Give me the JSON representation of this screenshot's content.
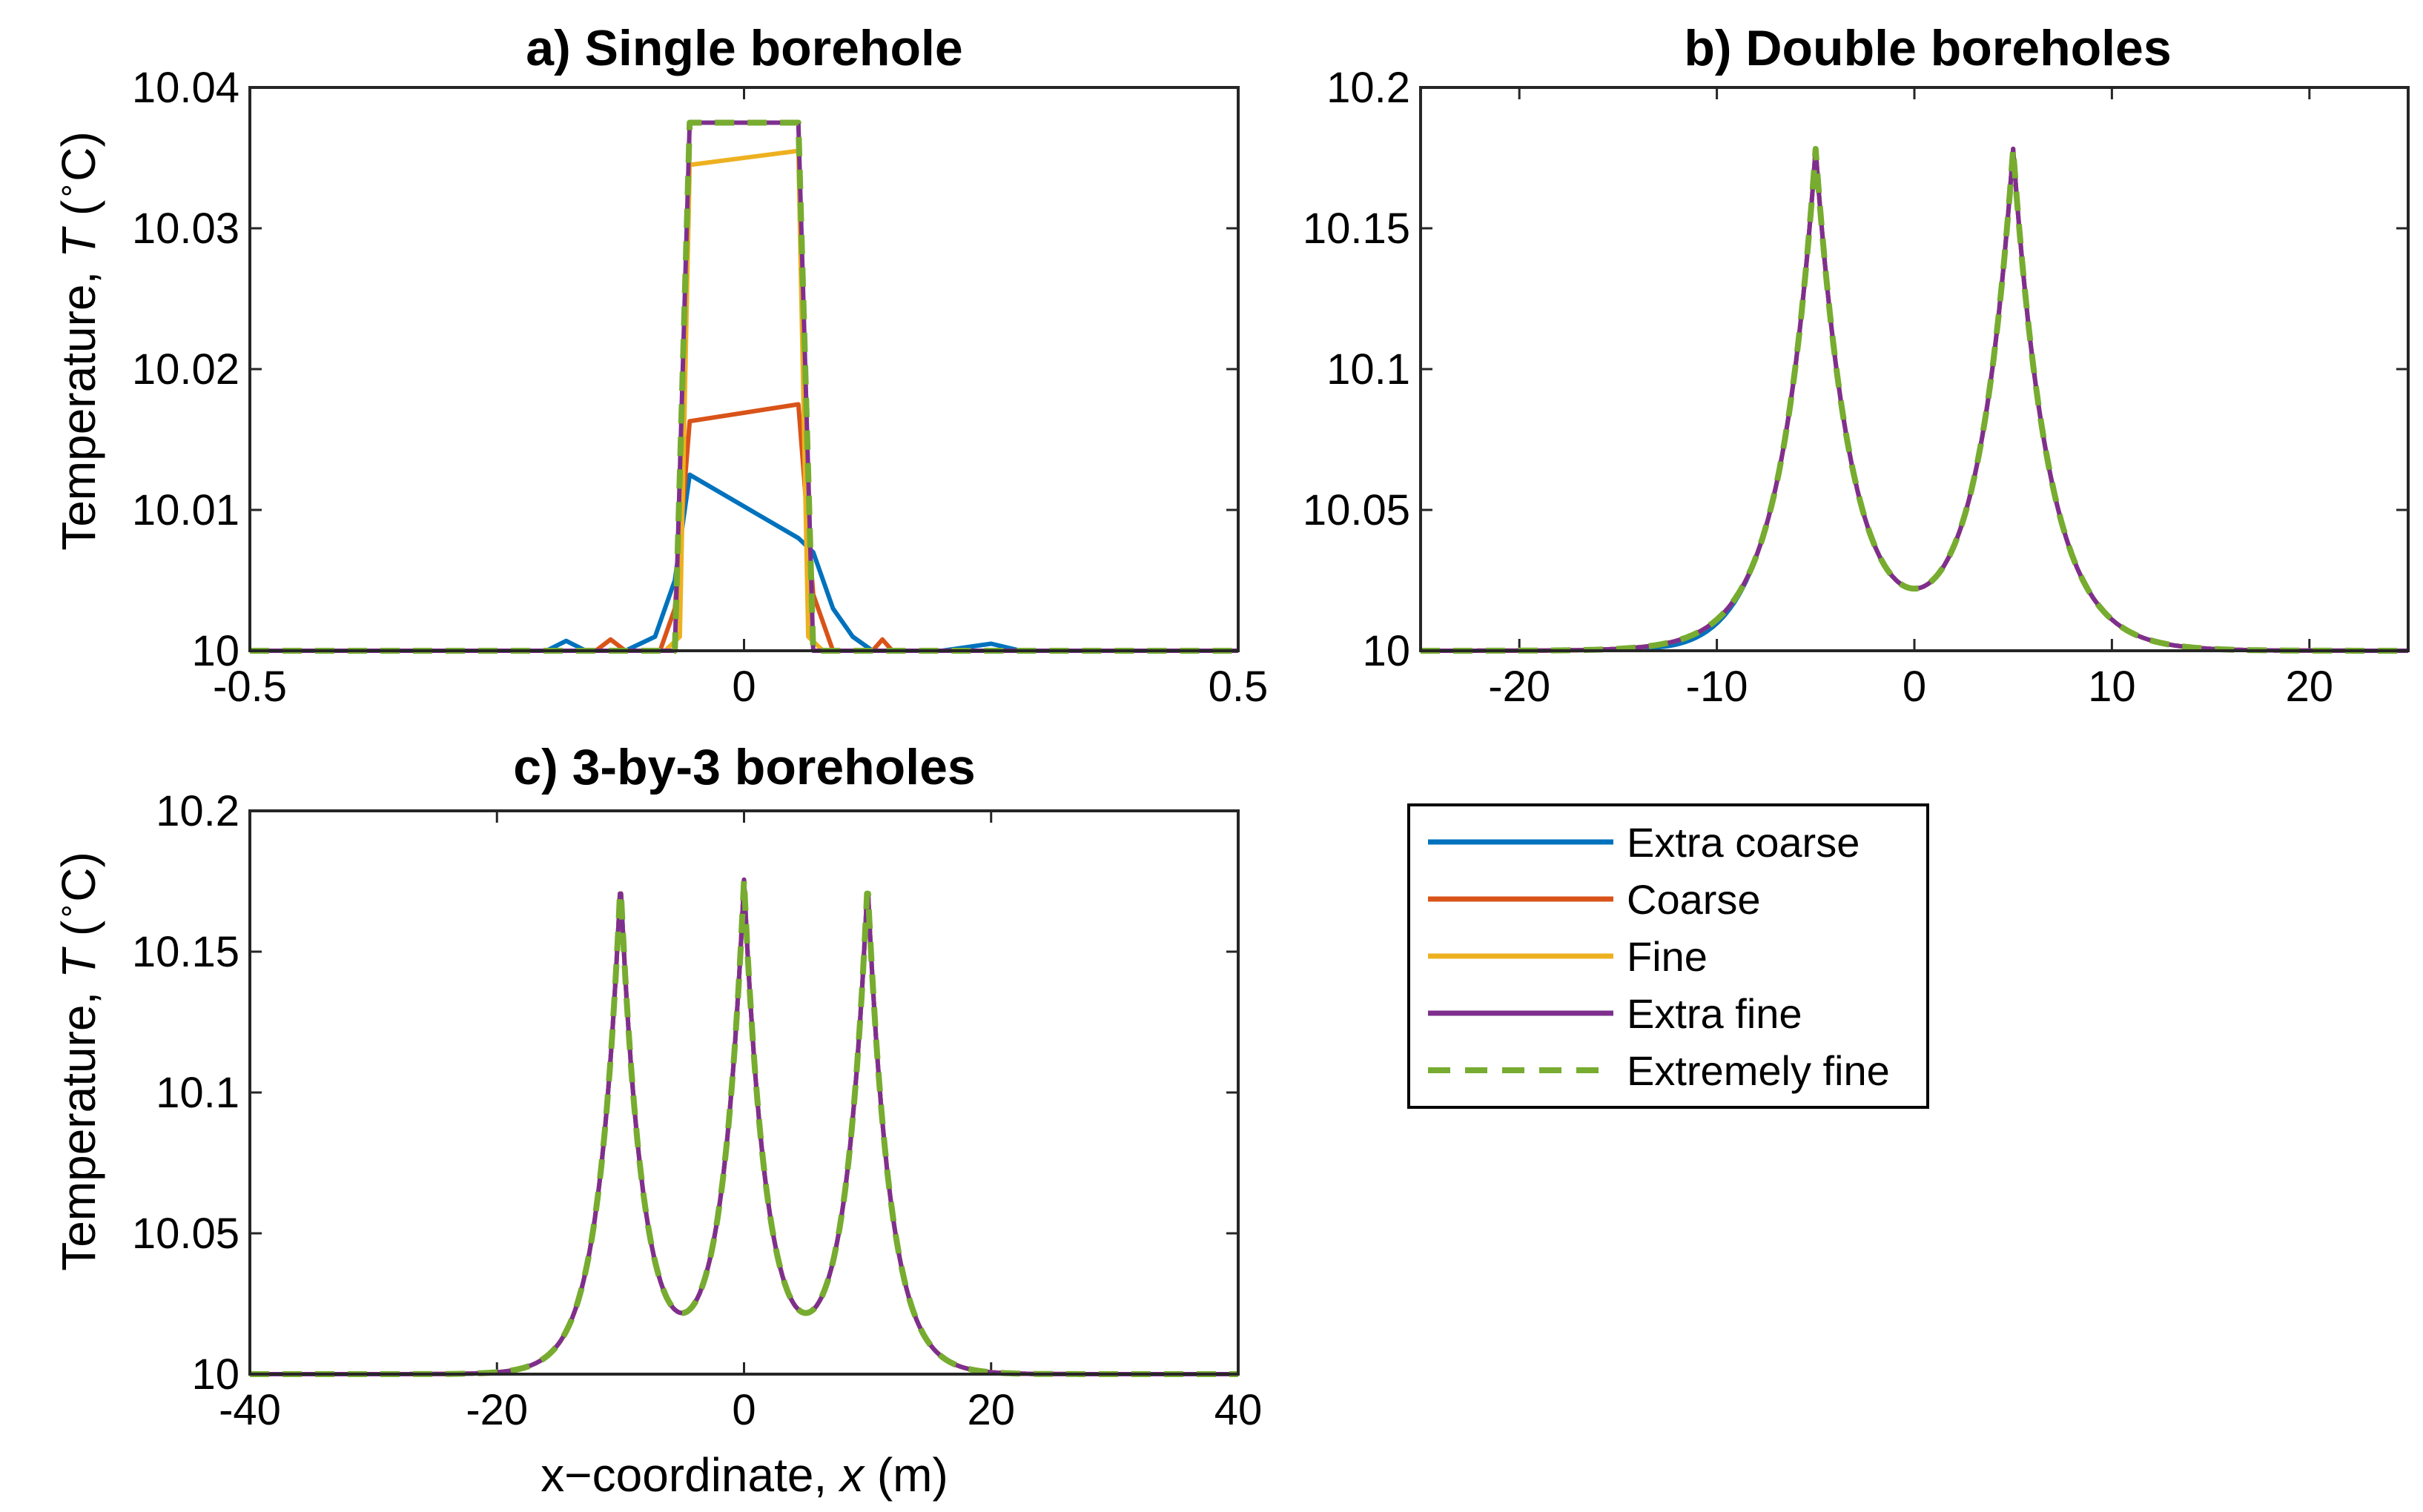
{
  "chart_data": [
    {
      "id": "a",
      "type": "line",
      "title": "a) Single borehole",
      "ylabel": "Temperature, T (°C)",
      "ylabel_parts": {
        "prefix": "Temperature,",
        "var": "T",
        "sup": "∘",
        "unit": "C"
      },
      "xlabel": "",
      "xlim": [
        -0.5,
        0.5
      ],
      "ylim": [
        10,
        10.04
      ],
      "xticks": [
        -0.5,
        0,
        0.5
      ],
      "xtick_labels": [
        "-0.5",
        "0",
        "0.5"
      ],
      "yticks": [
        10,
        10.01,
        10.02,
        10.03,
        10.04
      ],
      "ytick_labels": [
        "10",
        "10.01",
        "10.02",
        "10.03",
        "10.04"
      ],
      "series": [
        {
          "name": "Extra coarse",
          "x": [
            -0.5,
            -0.2,
            -0.18,
            -0.16,
            -0.12,
            -0.09,
            -0.07,
            -0.055,
            0.055,
            0.07,
            0.09,
            0.11,
            0.13,
            0.2,
            0.25,
            0.28,
            0.3,
            0.5
          ],
          "y": [
            10,
            10,
            10.0007,
            10,
            10,
            10.001,
            10.005,
            10.0125,
            10.008,
            10.007,
            10.003,
            10.001,
            10,
            10,
            10.0005,
            10,
            10,
            10
          ]
        },
        {
          "name": "Coarse",
          "x": [
            -0.5,
            -0.15,
            -0.135,
            -0.12,
            -0.085,
            -0.07,
            -0.055,
            0.055,
            0.07,
            0.09,
            0.13,
            0.14,
            0.15,
            0.5
          ],
          "y": [
            10,
            10,
            10.0008,
            10,
            10,
            10.003,
            10.0163,
            10.0175,
            10.004,
            10,
            10,
            10.0008,
            10,
            10
          ]
        },
        {
          "name": "Fine",
          "x": [
            -0.5,
            -0.08,
            -0.065,
            -0.055,
            0.055,
            0.065,
            0.08,
            0.5
          ],
          "y": [
            10,
            10,
            10.001,
            10.0345,
            10.0355,
            10.001,
            10,
            10
          ]
        },
        {
          "name": "Extra fine",
          "x": [
            -0.5,
            -0.07,
            -0.055,
            0.055,
            0.07,
            0.5
          ],
          "y": [
            10,
            10,
            10.0375,
            10.0375,
            10,
            10
          ]
        },
        {
          "name": "Extremely fine",
          "x": [
            -0.5,
            -0.07,
            -0.055,
            0.055,
            0.07,
            0.5
          ],
          "y": [
            10,
            10,
            10.0375,
            10.0375,
            10,
            10
          ]
        }
      ]
    },
    {
      "id": "b",
      "type": "line",
      "title": "b) Double boreholes",
      "ylabel": "",
      "xlabel": "",
      "xlim": [
        -25,
        25
      ],
      "ylim": [
        10,
        10.2
      ],
      "xticks": [
        -20,
        -10,
        0,
        10,
        20
      ],
      "xtick_labels": [
        "-20",
        "-10",
        "0",
        "10",
        "20"
      ],
      "yticks": [
        10,
        10.05,
        10.1,
        10.15,
        10.2
      ],
      "ytick_labels": [
        "10",
        "10.05",
        "10.1",
        "10.15",
        "10.2"
      ],
      "peak_model": {
        "centers": [
          -5,
          5
        ],
        "amplitude": 0.1775,
        "width": 1.8,
        "peak_max": 10.186
      },
      "extra_coarse_deviation": {
        "x_range": [
          -14,
          -8
        ],
        "dip": -0.0015
      }
    },
    {
      "id": "c",
      "type": "line",
      "title": "c) 3-by-3 boreholes",
      "ylabel": "Temperature, T (°C)",
      "ylabel_parts": {
        "prefix": "Temperature,",
        "var": "T",
        "sup": "∘",
        "unit": "C"
      },
      "xlabel": "x−coordinate, x (m)",
      "xlabel_parts": {
        "prefix": "x−coordinate,",
        "var": "x",
        "unit": "(m)"
      },
      "xlim": [
        -40,
        40
      ],
      "ylim": [
        10,
        10.2
      ],
      "xticks": [
        -40,
        -20,
        0,
        20,
        40
      ],
      "xtick_labels": [
        "-40",
        "-20",
        "0",
        "20",
        "40"
      ],
      "yticks": [
        10,
        10.05,
        10.1,
        10.15,
        10.2
      ],
      "ytick_labels": [
        "10",
        "10.05",
        "10.1",
        "10.15",
        "10.2"
      ],
      "peak_model": {
        "centers": [
          -10,
          0,
          10
        ],
        "amplitude": 0.1742,
        "width": 1.8,
        "peak_max": 10.186
      }
    }
  ],
  "legend": {
    "placement": "bottom-right",
    "entries": [
      {
        "name": "Extra coarse",
        "color": "#0072BD",
        "dashed": false
      },
      {
        "name": "Coarse",
        "color": "#D95319",
        "dashed": false
      },
      {
        "name": "Fine",
        "color": "#EDB120",
        "dashed": false
      },
      {
        "name": "Extra fine",
        "color": "#7E2F8E",
        "dashed": false
      },
      {
        "name": "Extremely fine",
        "color": "#77AC30",
        "dashed": true
      }
    ]
  }
}
